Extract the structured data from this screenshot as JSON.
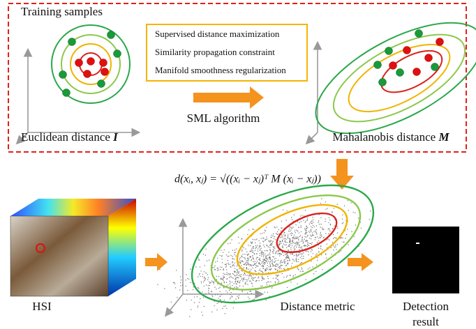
{
  "top_panel": {
    "training_label": "Training samples",
    "constraints": [
      "Supervised distance maximization",
      "Similarity propagation constraint",
      "Manifold smoothness regularization"
    ],
    "algorithm_label": "SML algorithm",
    "euclidean": {
      "text": "Euclidean distance",
      "symbol": "I"
    },
    "mahalanobis": {
      "text": "Mahalanobis distance",
      "symbol": "M"
    }
  },
  "formula": "d(xᵢ, xⱼ) = √((xᵢ − xⱼ)ᵀ M (xᵢ − xⱼ))",
  "bottom_panel": {
    "hsi_label": "HSI",
    "metric_label": "Distance metric",
    "detection_label": [
      "Detection",
      "result"
    ]
  }
}
